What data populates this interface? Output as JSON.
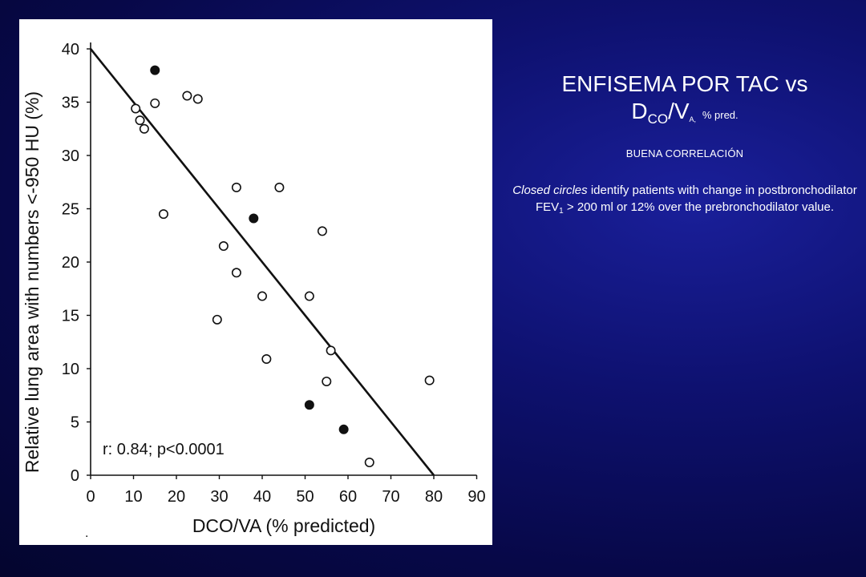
{
  "slide": {
    "title_line1": "ENFISEMA POR TAC vs",
    "title_d": "D",
    "title_co": "CO",
    "title_v": "/V",
    "title_a": "A,",
    "title_pred": "% pred.",
    "subtitle": "BUENA CORRELACIÓN",
    "desc_italic": "Closed circles",
    "desc_part1": " identify patients with change in postbronchodilator FEV",
    "desc_fev_sub": "1",
    "desc_part2": " > 200 ml or 12% over the prebronchodilator value."
  },
  "chart_data": {
    "type": "scatter",
    "xlabel": "DCO/VA  (% predicted)",
    "ylabel": "Relative lung area with   numbers <-950 HU (%)",
    "xlim": [
      0,
      90
    ],
    "ylim": [
      0,
      40
    ],
    "x_ticks": [
      "0",
      "10",
      "20",
      "30",
      "40",
      "50",
      "60",
      "70",
      "80",
      "90"
    ],
    "y_ticks": [
      "0",
      "5",
      "10",
      "15",
      "20",
      "25",
      "30",
      "35",
      "40"
    ],
    "annotation": "r:  0.84;    p<0.0001",
    "regression_line": {
      "x": [
        0,
        80
      ],
      "y": [
        40,
        0
      ]
    },
    "series": [
      {
        "filled": false,
        "points": [
          [
            10.5,
            34.4
          ],
          [
            11.5,
            33.3
          ],
          [
            12.5,
            32.5
          ],
          [
            15,
            34.9
          ],
          [
            22.5,
            35.6
          ],
          [
            25,
            35.3
          ],
          [
            17,
            24.5
          ],
          [
            34,
            27
          ],
          [
            44,
            27
          ],
          [
            31,
            21.5
          ],
          [
            34,
            19
          ],
          [
            54,
            22.9
          ],
          [
            40,
            16.8
          ],
          [
            51,
            16.8
          ],
          [
            29.5,
            14.6
          ],
          [
            41,
            10.9
          ],
          [
            56,
            11.7
          ],
          [
            55,
            8.8
          ],
          [
            79,
            8.9
          ],
          [
            65,
            1.2
          ]
        ]
      },
      {
        "filled": true,
        "points": [
          [
            15,
            38
          ],
          [
            38,
            24.1
          ],
          [
            51,
            6.6
          ],
          [
            59,
            4.3
          ]
        ]
      }
    ]
  },
  "colors": {
    "background": "#0b0d5e",
    "text": "#ffffff",
    "plot": "#111111"
  }
}
